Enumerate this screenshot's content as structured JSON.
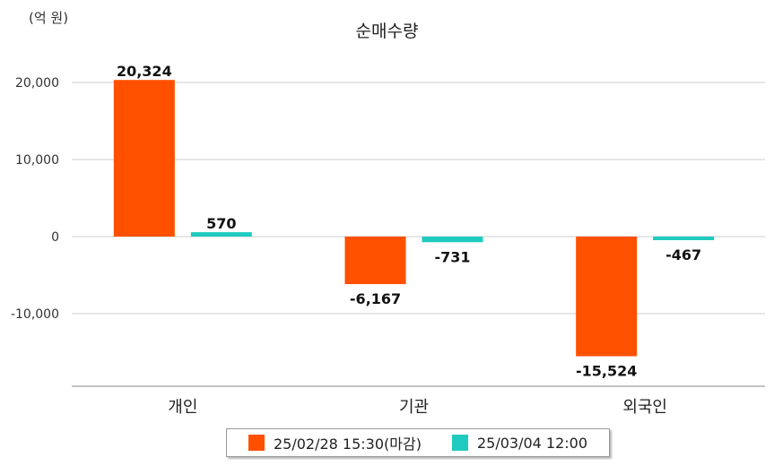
{
  "unit_label": "(억 원)",
  "chart_data": {
    "type": "bar",
    "title": "순매수량",
    "categories": [
      "개인",
      "기관",
      "외국인"
    ],
    "series": [
      {
        "name": "25/02/28 15:30(마감)",
        "color": "#FF5000",
        "values": [
          20324,
          -6167,
          -15524
        ],
        "labels": [
          "20,324",
          "-6,167",
          "-15,524"
        ]
      },
      {
        "name": "25/03/04 12:00",
        "color": "#1FCBBF",
        "values": [
          570,
          -731,
          -467
        ],
        "labels": [
          "570",
          "-731",
          "-467"
        ]
      }
    ],
    "yticks": [
      20000,
      10000,
      0,
      -10000
    ],
    "ytick_labels": [
      "20,000",
      "10,000",
      "0",
      "-10,000"
    ],
    "ylim": [
      -19500,
      23000
    ],
    "grid": true,
    "legend_position": "bottom"
  }
}
